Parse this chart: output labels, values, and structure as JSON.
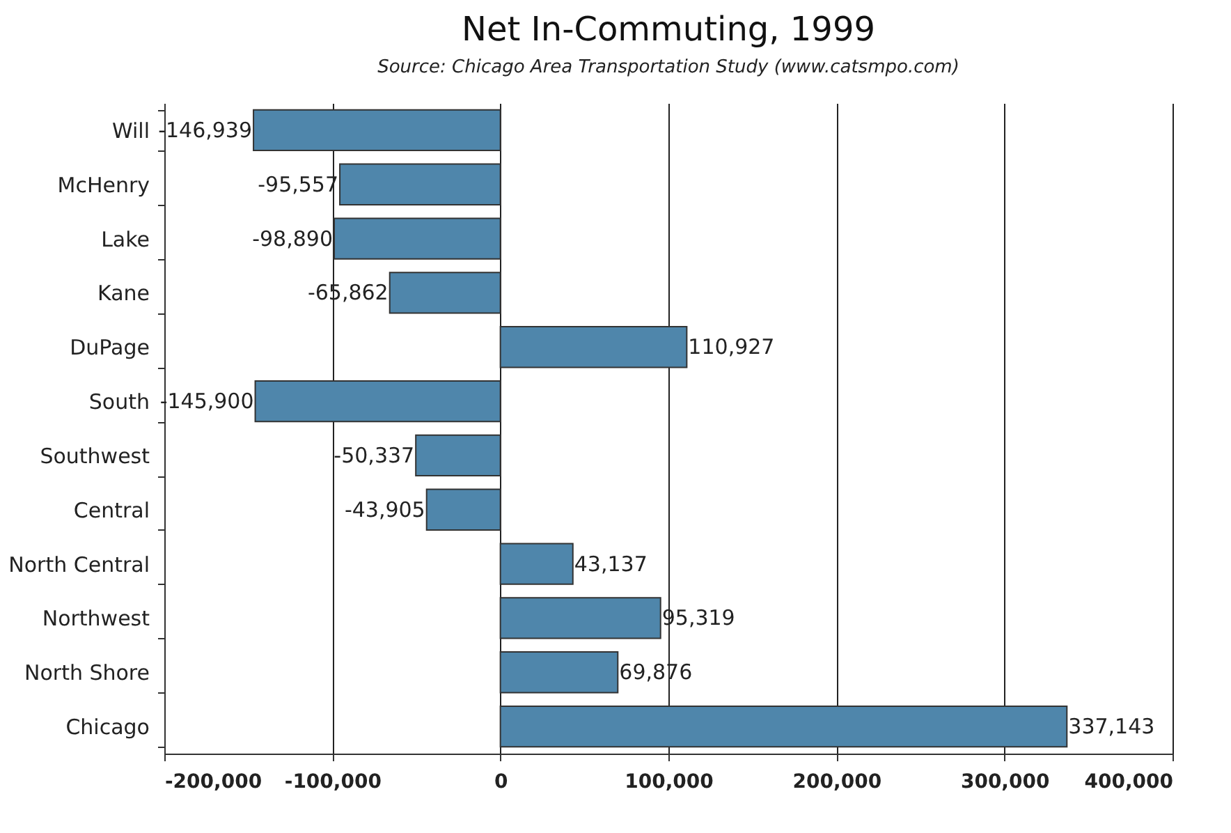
{
  "chart_data": {
    "type": "bar",
    "orientation": "horizontal",
    "title": "Net In-Commuting, 1999",
    "subtitle": "Source: Chicago Area Transportation Study (www.catsmpo.com)",
    "categories": [
      "Will",
      "McHenry",
      "Lake",
      "Kane",
      "DuPage",
      "South",
      "Southwest",
      "Central",
      "North Central",
      "Northwest",
      "North Shore",
      "Chicago"
    ],
    "values": [
      -146939,
      -95557,
      -98890,
      -65862,
      110927,
      -145900,
      -50337,
      -43905,
      43137,
      95319,
      69876,
      337143
    ],
    "value_labels": [
      "-146,939",
      "-95,557",
      "-98,890",
      "-65,862",
      "110,927",
      "-145,900",
      "-50,337",
      "-43,905",
      "43,137",
      "95,319",
      "69,876",
      "337,143"
    ],
    "color": "#4f86ab",
    "xlim": [
      -200000,
      400000
    ],
    "xticks": [
      {
        "value": -200000,
        "label": "-200,000"
      },
      {
        "value": -100000,
        "label": "-100,000"
      },
      0,
      {
        "value": 100000,
        "label": "100,000"
      },
      {
        "value": 200000,
        "label": "200,000"
      },
      {
        "value": 300000,
        "label": "300,000"
      },
      {
        "value": 400000,
        "label": "400,000"
      }
    ],
    "grid": "x"
  }
}
